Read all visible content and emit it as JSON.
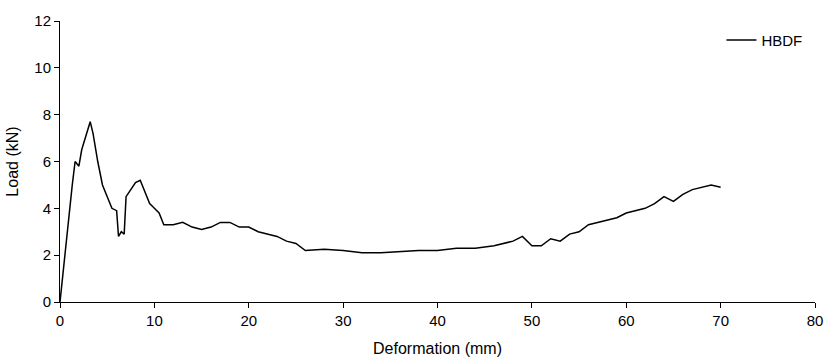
{
  "chart_data": {
    "type": "line",
    "x_label": "Deformation (mm)",
    "y_label": "Load (kN)",
    "series": [
      {
        "name": "HBDF",
        "color": "#000000",
        "x": [
          0,
          0.5,
          1,
          1.3,
          1.6,
          2,
          2.3,
          2.8,
          3.2,
          3.5,
          4,
          4.5,
          5,
          5.5,
          6,
          6.2,
          6.5,
          6.8,
          7,
          7.5,
          8,
          8.5,
          9,
          9.5,
          10,
          10.5,
          11,
          12,
          13,
          14,
          15,
          16,
          17,
          18,
          19,
          20,
          21,
          22,
          23,
          24,
          25,
          26,
          28,
          30,
          32,
          34,
          36,
          38,
          40,
          42,
          44,
          46,
          48,
          49,
          50,
          51,
          52,
          53,
          54,
          55,
          56,
          57,
          58,
          59,
          60,
          61,
          62,
          63,
          64,
          65,
          66,
          67,
          68,
          69,
          70
        ],
        "values": [
          0,
          2,
          4,
          5,
          6,
          5.8,
          6.5,
          7.2,
          7.7,
          7.2,
          6,
          5,
          4.5,
          4,
          3.9,
          2.8,
          3,
          2.9,
          4.5,
          4.8,
          5.1,
          5.2,
          4.7,
          4.2,
          4,
          3.8,
          3.3,
          3.3,
          3.4,
          3.2,
          3.1,
          3.2,
          3.4,
          3.4,
          3.2,
          3.2,
          3.0,
          2.9,
          2.8,
          2.6,
          2.5,
          2.2,
          2.25,
          2.2,
          2.1,
          2.1,
          2.15,
          2.2,
          2.2,
          2.3,
          2.3,
          2.4,
          2.6,
          2.8,
          2.4,
          2.4,
          2.7,
          2.6,
          2.9,
          3.0,
          3.3,
          3.4,
          3.5,
          3.6,
          3.8,
          3.9,
          4.0,
          4.2,
          4.5,
          4.3,
          4.6,
          4.8,
          4.9,
          5.0,
          4.9
        ]
      }
    ],
    "xlim": [
      0,
      80
    ],
    "xticks": [
      0,
      10,
      20,
      30,
      40,
      50,
      60,
      70,
      80
    ],
    "ylim": [
      0,
      12
    ],
    "yticks": [
      0,
      2,
      4,
      6,
      8,
      10,
      12
    ],
    "grid": false,
    "legend": "upper right"
  }
}
